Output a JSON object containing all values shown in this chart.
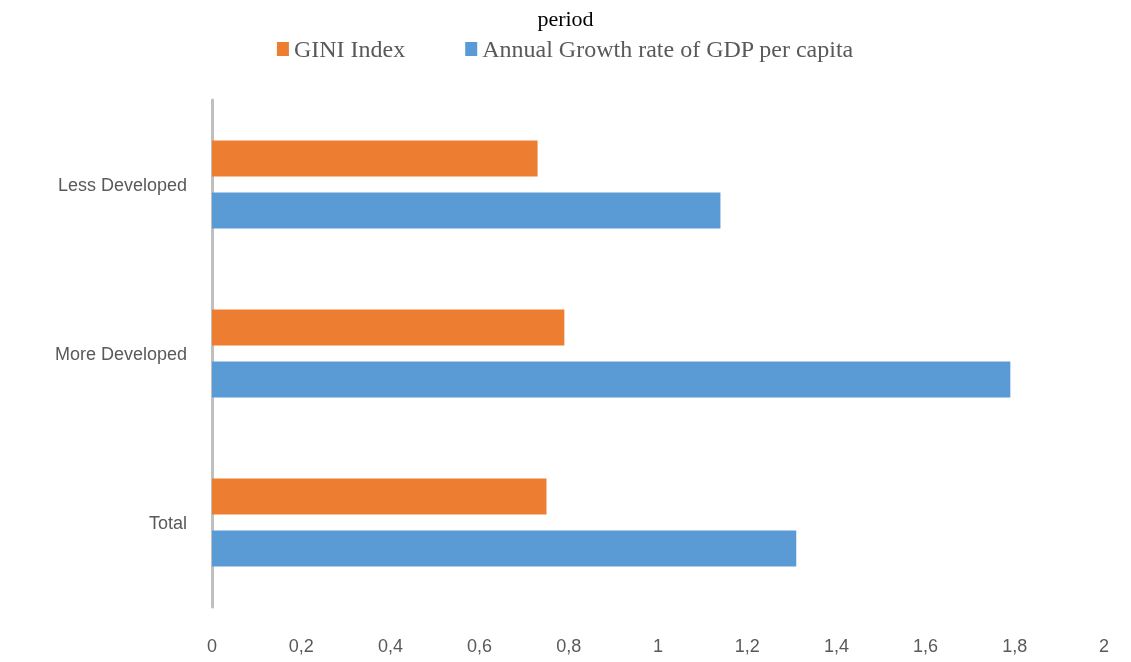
{
  "chart_data": {
    "type": "bar",
    "orientation": "horizontal",
    "title": "period",
    "categories": [
      "Less Developed",
      "More Developed",
      "Total"
    ],
    "series": [
      {
        "name": "GINI Index",
        "color": "#ed7d31",
        "values": [
          0.73,
          0.79,
          0.75
        ]
      },
      {
        "name": "Annual Growth rate of GDP per capita",
        "color": "#5b9bd5",
        "values": [
          1.14,
          1.79,
          1.31
        ]
      }
    ],
    "xlim": [
      0,
      2
    ],
    "xticks": [
      0,
      {
        "value": 0.2,
        "label": "0,2"
      },
      {
        "value": 0.4,
        "label": "0,4"
      },
      {
        "value": 0.6,
        "label": "0,6"
      },
      {
        "value": 0.8,
        "label": "0,8"
      },
      1,
      {
        "value": 1.2,
        "label": "1,2"
      },
      {
        "value": 1.4,
        "label": "1,4"
      },
      {
        "value": 1.6,
        "label": "1,6"
      },
      {
        "value": 1.8,
        "label": "1,8"
      },
      2
    ],
    "grid": false,
    "legend": "top"
  }
}
